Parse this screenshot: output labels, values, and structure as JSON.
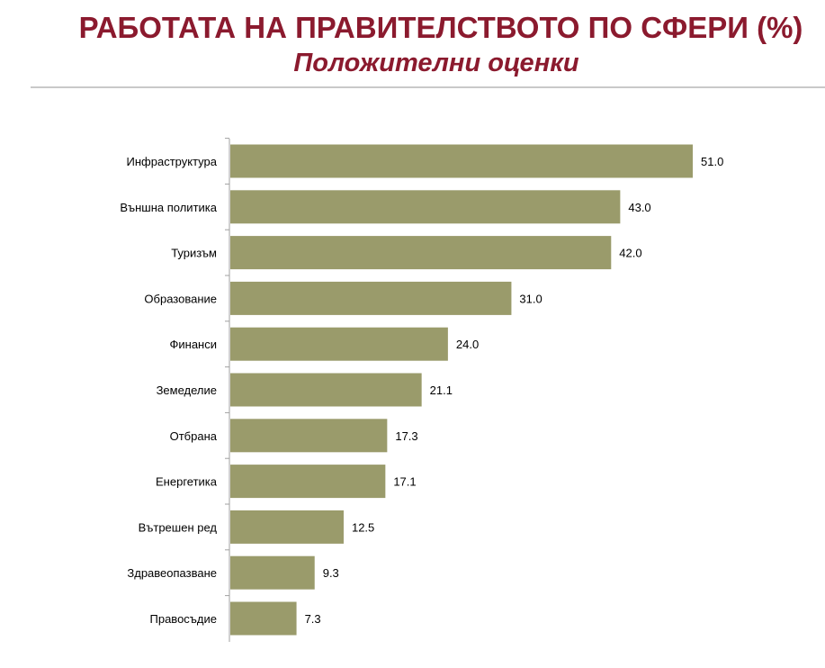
{
  "header": {
    "title": "РАБОТАТА НА ПРАВИТЕЛСТВОТО ПО СФЕРИ (%)",
    "subtitle": "Положителни оценки"
  },
  "colors": {
    "title": "#8b1a2e",
    "bar": "#9a9b6b",
    "axis": "#a0a0a0"
  },
  "chart_data": {
    "type": "bar",
    "orientation": "horizontal",
    "title": "РАБОТАТА НА ПРАВИТЕЛСТВОТО ПО СФЕРИ (%)",
    "subtitle": "Положителни оценки",
    "categories": [
      "Инфраструктура",
      "Външна политика",
      "Туризъм",
      "Образование",
      "Финанси",
      "Земеделие",
      "Отбрана",
      "Енергетика",
      "Вътрешен ред",
      "Здравеопазване",
      "Правосъдие"
    ],
    "values": [
      51.0,
      43.0,
      42.0,
      31.0,
      24.0,
      21.1,
      17.3,
      17.1,
      12.5,
      9.3,
      7.3
    ],
    "value_labels": [
      "51.0",
      "43.0",
      "42.0",
      "31.0",
      "24.0",
      "21.1",
      "17.3",
      "17.1",
      "12.5",
      "9.3",
      "7.3"
    ],
    "xlim": [
      0,
      51
    ],
    "grid": false,
    "legend": "none"
  }
}
